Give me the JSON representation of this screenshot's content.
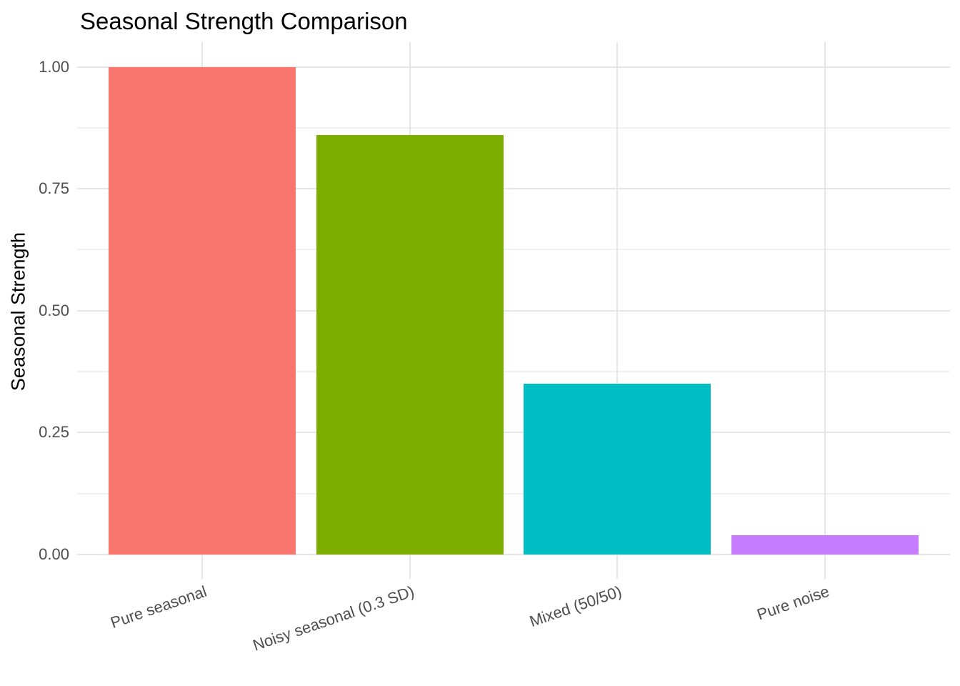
{
  "chart_data": {
    "type": "bar",
    "title": "Seasonal Strength Comparison",
    "xlabel": "",
    "ylabel": "Seasonal Strength",
    "categories": [
      "Pure seasonal",
      "Noisy seasonal (0.3 SD)",
      "Mixed (50/50)",
      "Pure noise"
    ],
    "values": [
      1.0,
      0.86,
      0.35,
      0.04
    ],
    "bar_colors": [
      "#F8766D",
      "#7CAE00",
      "#00BFC4",
      "#C77CFF"
    ],
    "ylim": [
      -0.05,
      1.05
    ],
    "y_ticks": [
      0.0,
      0.25,
      0.5,
      0.75,
      1.0
    ],
    "y_tick_labels": [
      "0.00",
      "0.25",
      "0.50",
      "0.75",
      "1.00"
    ],
    "y_minor_ticks": [
      0.125,
      0.375,
      0.625,
      0.875
    ],
    "grid": true,
    "legend": "none",
    "x_label_angle_deg": -19
  },
  "style": {
    "background": "#FFFFFF",
    "grid_major": "#E5E5E5",
    "grid_minor": "#F0F0F0",
    "axis_text": "#4D4D4D",
    "title_text": "#000000"
  }
}
